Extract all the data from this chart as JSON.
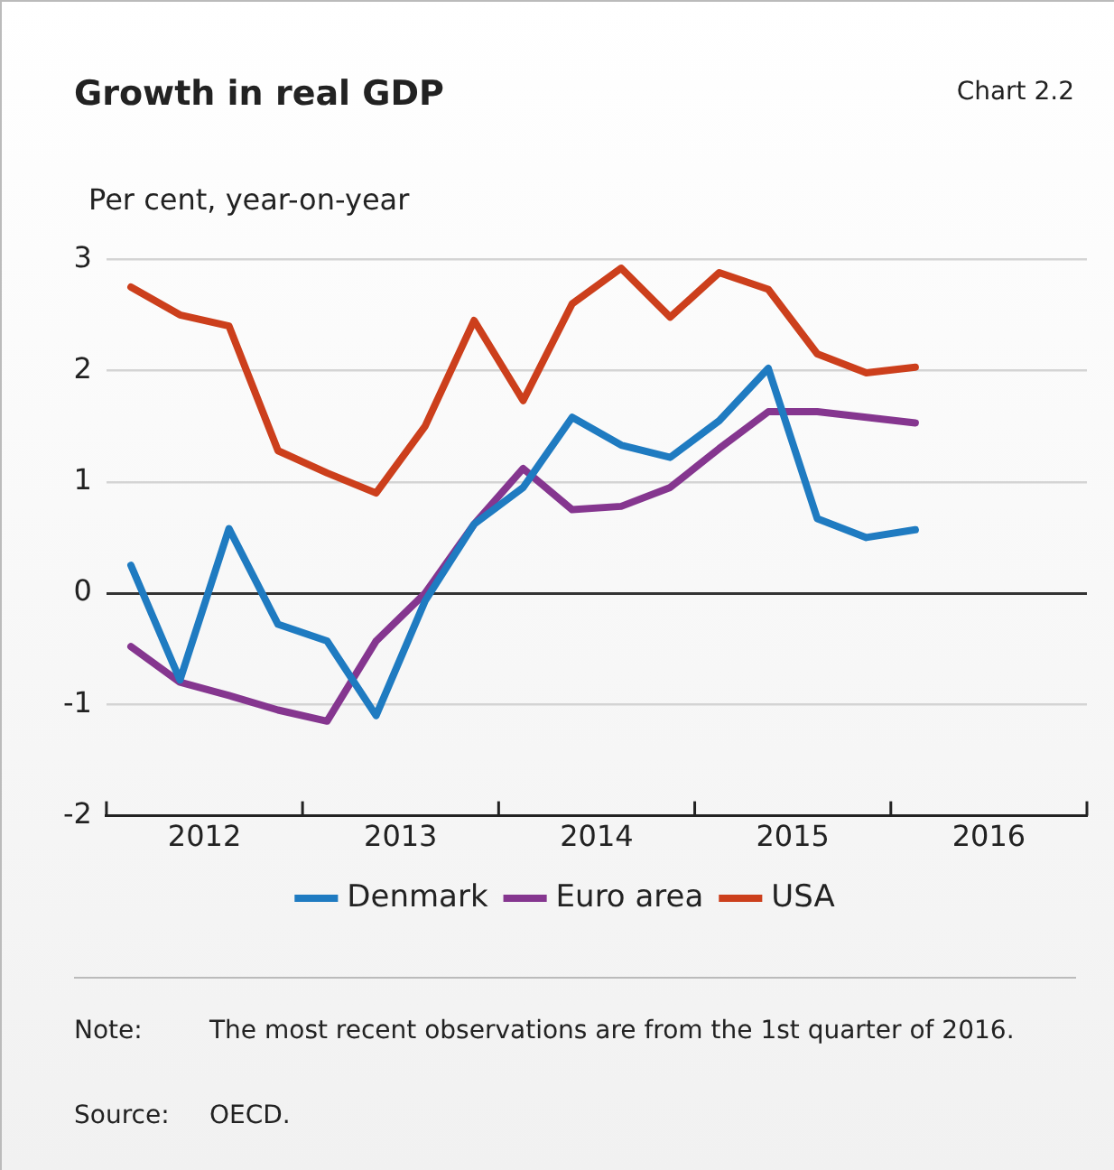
{
  "chart_data": {
    "type": "line",
    "title": "Growth in real GDP",
    "ylabel": "Per cent, year-on-year",
    "x": [
      2012.125,
      2012.375,
      2012.625,
      2012.875,
      2013.125,
      2013.375,
      2013.625,
      2013.875,
      2014.125,
      2014.375,
      2014.625,
      2014.875,
      2015.125,
      2015.375,
      2015.625,
      2015.875,
      2016.125
    ],
    "series": [
      {
        "name": "Denmark",
        "color": "#1f7bc1",
        "values": [
          0.25,
          -0.78,
          0.58,
          -0.28,
          -0.43,
          -1.1,
          -0.07,
          0.62,
          0.95,
          1.58,
          1.33,
          1.22,
          1.55,
          2.02,
          0.67,
          0.5,
          0.57
        ]
      },
      {
        "name": "Euro area",
        "color": "#85368f",
        "values": [
          -0.48,
          -0.8,
          -0.92,
          -1.05,
          -1.15,
          -0.43,
          0.0,
          0.62,
          1.12,
          0.75,
          0.78,
          0.95,
          1.3,
          1.63,
          1.63,
          1.58,
          1.53
        ]
      },
      {
        "name": "USA",
        "color": "#cc3f1c",
        "values": [
          2.75,
          2.5,
          2.4,
          1.28,
          1.08,
          0.9,
          1.5,
          2.45,
          1.73,
          2.6,
          2.92,
          2.48,
          2.88,
          2.73,
          2.15,
          1.98,
          2.03
        ]
      }
    ],
    "xlim": [
      2012,
      2017
    ],
    "xticks": [
      {
        "value": 2012,
        "label": null
      },
      {
        "value": 2012.5,
        "label": "2012"
      },
      {
        "value": 2013,
        "label": null
      },
      {
        "value": 2013.5,
        "label": "2013"
      },
      {
        "value": 2014,
        "label": null
      },
      {
        "value": 2014.5,
        "label": "2014"
      },
      {
        "value": 2015,
        "label": null
      },
      {
        "value": 2015.5,
        "label": "2015"
      },
      {
        "value": 2016,
        "label": null
      },
      {
        "value": 2016.5,
        "label": "2016"
      },
      {
        "value": 2017,
        "label": null
      }
    ],
    "ylim": [
      -2,
      3
    ],
    "yticks": [
      -2,
      -1,
      0,
      1,
      2,
      3
    ],
    "grid": "y",
    "legend": "bottom",
    "marker": "none",
    "line_style": "solid",
    "annotations": [
      "Chart 2.2",
      "Note:\tThe most recent observations are from the 1st quarter of 2016.",
      "Source:\tOECD."
    ]
  }
}
